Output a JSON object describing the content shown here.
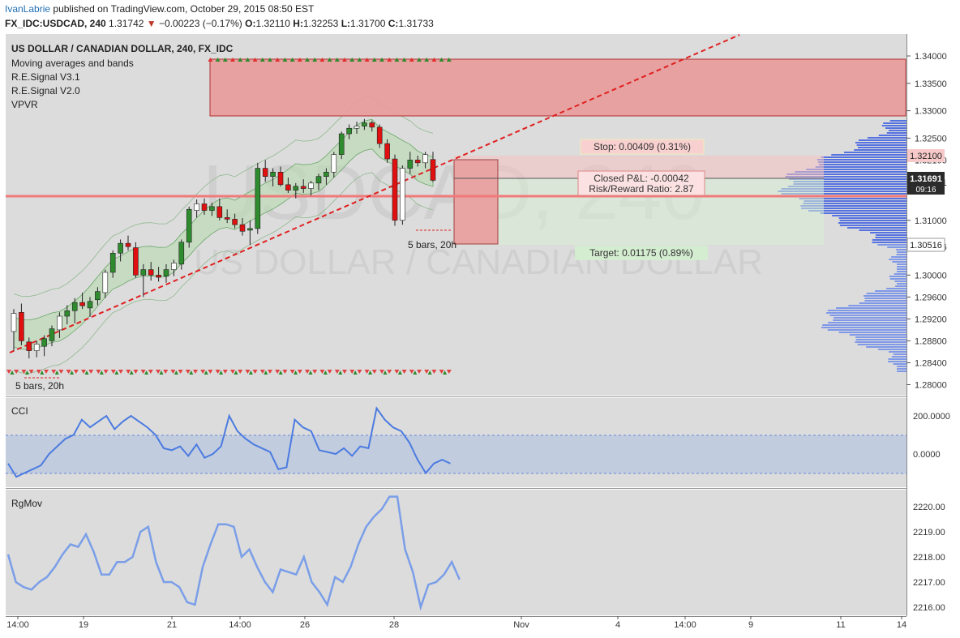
{
  "header": {
    "author": "IvanLabrie",
    "published": "published on TradingView.com, October 29, 2015 08:50 EST",
    "symbol": "FX_IDC:USDCAD, 240",
    "last": "1.31742",
    "arrow": "▼",
    "change": "−0.00223 (−0.17%)",
    "o_label": "O:",
    "o": "1.32110",
    "h_label": "H:",
    "h": "1.32253",
    "l_label": "L:",
    "l": "1.31700",
    "c_label": "C:",
    "c": "1.31733"
  },
  "legend": {
    "title": "US DOLLAR / CANADIAN DOLLAR, 240, FX_IDC",
    "items": [
      "Moving averages and bands",
      "R.E.Signal V3.1",
      "R.E.Signal V2.0",
      "VPVR"
    ]
  },
  "watermark": {
    "big": "USDCAD, 240",
    "small": "US DOLLAR / CANADIAN DOLLAR"
  },
  "annotations": {
    "stop": "Stop: 0.00409 (0.31%)",
    "closed_pl": "Closed P&L: -0.00042",
    "rr": "Risk/Reward Ratio: 2.87",
    "target": "Target: 0.01175 (0.89%)",
    "bars_right": "5 bars, 20h",
    "bars_left": "5 bars, 20h"
  },
  "price_tags": {
    "stop_tag": "1.32100",
    "last_tag": "1.31691",
    "countdown": "09:16",
    "target_tag": "1.30516"
  },
  "colors": {
    "up": "#2e8b2e",
    "down": "#e01010",
    "band_fill": "#b9d8b0",
    "supply_zone": "#e8a0a0",
    "vpvr": "#3e5fe0",
    "cci": "#4b7be0",
    "rgmov": "#7a9ee8",
    "trend": "#e02020",
    "bg": "#dcdcdc"
  },
  "chart_data": [
    {
      "type": "candlestick",
      "title": "US DOLLAR / CANADIAN DOLLAR, 240, FX_IDC",
      "ylim": [
        1.278,
        1.344
      ],
      "y_ticks": [
        "1.34000",
        "1.33500",
        "1.33000",
        "1.32500",
        "1.32100",
        "1.31691",
        "1.31000",
        "1.30516",
        "1.30000",
        "1.29600",
        "1.29200",
        "1.28800",
        "1.28400",
        "1.28000"
      ],
      "x_ticks": [
        "14:00",
        "19",
        "21",
        "14:00",
        "26",
        "28",
        "Nov",
        "4",
        "14:00",
        "9",
        "11",
        "14"
      ],
      "ohlc": [
        [
          1.2897,
          1.2938,
          1.2862,
          1.293
        ],
        [
          1.2932,
          1.2948,
          1.2872,
          1.288
        ],
        [
          1.2878,
          1.2886,
          1.2848,
          1.2862
        ],
        [
          1.2862,
          1.288,
          1.285,
          1.2874
        ],
        [
          1.287,
          1.289,
          1.2852,
          1.2884
        ],
        [
          1.288,
          1.2908,
          1.287,
          1.2902
        ],
        [
          1.29,
          1.2932,
          1.2885,
          1.2925
        ],
        [
          1.2925,
          1.2945,
          1.291,
          1.2935
        ],
        [
          1.2935,
          1.2958,
          1.2912,
          1.295
        ],
        [
          1.295,
          1.2968,
          1.2938,
          1.2944
        ],
        [
          1.294,
          1.296,
          1.2924,
          1.2952
        ],
        [
          1.2955,
          1.2978,
          1.2945,
          1.297
        ],
        [
          1.2968,
          1.301,
          1.2958,
          1.3005
        ],
        [
          1.3005,
          1.3045,
          1.2995,
          1.304
        ],
        [
          1.304,
          1.3065,
          1.3025,
          1.3058
        ],
        [
          1.3058,
          1.3072,
          1.3045,
          1.3052
        ],
        [
          1.305,
          1.306,
          1.2995,
          1.3
        ],
        [
          1.3,
          1.302,
          1.296,
          1.301
        ],
        [
          1.301,
          1.3024,
          1.299,
          1.3
        ],
        [
          1.3,
          1.3015,
          1.2988,
          1.2996
        ],
        [
          1.2998,
          1.302,
          1.2986,
          1.301
        ],
        [
          1.301,
          1.3028,
          1.2998,
          1.3022
        ],
        [
          1.302,
          1.3065,
          1.301,
          1.306
        ],
        [
          1.306,
          1.3125,
          1.305,
          1.312
        ],
        [
          1.3118,
          1.3138,
          1.3105,
          1.313
        ],
        [
          1.313,
          1.314,
          1.311,
          1.3118
        ],
        [
          1.3118,
          1.3132,
          1.3108,
          1.3125
        ],
        [
          1.3125,
          1.314,
          1.31,
          1.3105
        ],
        [
          1.3105,
          1.312,
          1.3095,
          1.3102
        ],
        [
          1.3102,
          1.3112,
          1.3085,
          1.3092
        ],
        [
          1.3092,
          1.3104,
          1.3072,
          1.308
        ],
        [
          1.3082,
          1.31,
          1.3055,
          1.3085
        ],
        [
          1.3085,
          1.3205,
          1.3075,
          1.3195
        ],
        [
          1.3195,
          1.321,
          1.317,
          1.318
        ],
        [
          1.318,
          1.3195,
          1.3162,
          1.3188
        ],
        [
          1.3188,
          1.3198,
          1.3162,
          1.3165
        ],
        [
          1.3165,
          1.3178,
          1.315,
          1.3155
        ],
        [
          1.3155,
          1.3168,
          1.314,
          1.3162
        ],
        [
          1.3162,
          1.3175,
          1.315,
          1.3158
        ],
        [
          1.3158,
          1.3172,
          1.3145,
          1.3168
        ],
        [
          1.3168,
          1.3185,
          1.3155,
          1.318
        ],
        [
          1.318,
          1.3195,
          1.3165,
          1.3188
        ],
        [
          1.3188,
          1.3225,
          1.3178,
          1.322
        ],
        [
          1.322,
          1.3262,
          1.3212,
          1.3258
        ],
        [
          1.3258,
          1.3275,
          1.3248,
          1.3268
        ],
        [
          1.3268,
          1.328,
          1.3258,
          1.3272
        ],
        [
          1.3272,
          1.3285,
          1.3265,
          1.3278
        ],
        [
          1.3278,
          1.3282,
          1.3262,
          1.327
        ],
        [
          1.327,
          1.3275,
          1.3232,
          1.324
        ],
        [
          1.324,
          1.3248,
          1.3205,
          1.3212
        ],
        [
          1.3212,
          1.322,
          1.309,
          1.31
        ],
        [
          1.31,
          1.32,
          1.3092,
          1.3195
        ],
        [
          1.3195,
          1.3225,
          1.3185,
          1.321
        ],
        [
          1.321,
          1.3218,
          1.3198,
          1.3205
        ],
        [
          1.3205,
          1.3225,
          1.3195,
          1.322
        ],
        [
          1.3211,
          1.3225,
          1.317,
          1.3173
        ]
      ]
    },
    {
      "type": "line",
      "title": "CCI",
      "y_ticks": [
        "200.0000",
        "0.0000"
      ],
      "values": [
        -50,
        -120,
        -100,
        -80,
        -60,
        0,
        40,
        80,
        100,
        180,
        140,
        170,
        200,
        130,
        170,
        200,
        170,
        140,
        100,
        30,
        20,
        40,
        -10,
        50,
        -20,
        0,
        40,
        200,
        120,
        80,
        50,
        30,
        10,
        -80,
        -70,
        180,
        140,
        120,
        20,
        10,
        0,
        30,
        -10,
        40,
        30,
        240,
        180,
        140,
        120,
        60,
        -30,
        -100,
        -50,
        -30,
        -50
      ]
    },
    {
      "type": "line",
      "title": "RgMov",
      "y_ticks": [
        "2220.00",
        "2219.00",
        "2218.00",
        "2217.00",
        "2216.00"
      ],
      "values": [
        2218.1,
        2217.0,
        2216.8,
        2216.7,
        2217.0,
        2217.2,
        2217.6,
        2218.1,
        2218.5,
        2218.4,
        2218.9,
        2218.2,
        2217.3,
        2217.3,
        2217.8,
        2217.8,
        2218.0,
        2219.0,
        2219.2,
        2217.8,
        2217.0,
        2217.0,
        2216.8,
        2216.2,
        2216.1,
        2217.6,
        2218.5,
        2219.3,
        2219.3,
        2219.2,
        2218.0,
        2218.3,
        2217.6,
        2217.0,
        2216.6,
        2217.5,
        2217.4,
        2217.3,
        2218.0,
        2217.0,
        2216.6,
        2216.1,
        2217.2,
        2217.0,
        2217.6,
        2218.5,
        2219.2,
        2219.6,
        2219.9,
        2220.4,
        2220.4,
        2218.3,
        2217.4,
        2216.0,
        2216.9,
        2217.0,
        2217.3,
        2217.8,
        2217.1
      ]
    }
  ]
}
